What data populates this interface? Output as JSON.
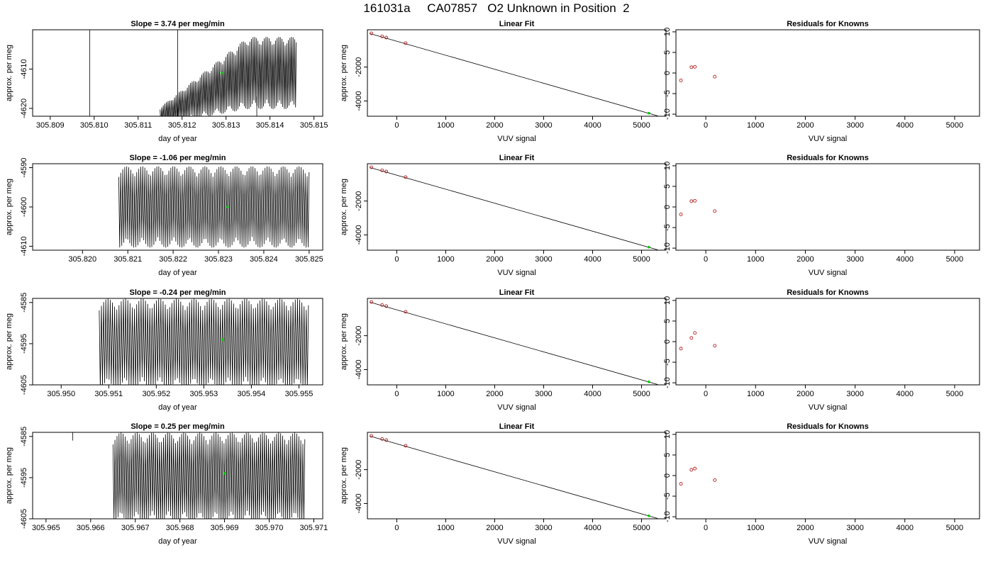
{
  "title": "161031a     CA07857   O2 Unknown in Position  2",
  "colors": {
    "series_line": "#000000",
    "known_points": "#b22222",
    "unknown_point": "#00cc00"
  },
  "chart_data": [
    {
      "type": "line",
      "title": "Slope =  3.74  per meg/min",
      "xlabel": "day of year",
      "ylabel": "approx. per meg",
      "xlim": [
        305.8086,
        305.8152
      ],
      "ylim": [
        -4622,
        -4600
      ],
      "xticks": [
        "305.809",
        "305.810",
        "305.811",
        "305.812",
        "305.813",
        "305.814",
        "305.815"
      ],
      "yticks": [
        "-4610",
        "-4620"
      ],
      "signal": {
        "start": 305.8115,
        "end": 305.8146,
        "ramp_start": 305.8115,
        "ramp_end": 305.8135,
        "center_min": -4622,
        "center_max": -4611,
        "amp_min": 2,
        "amp_max": 8,
        "cycles": 85
      },
      "extra_lines": [
        {
          "x": 305.8099,
          "y0": -4630,
          "y1": -4595
        },
        {
          "x": 305.8119,
          "y0": -4622,
          "y1": -4600
        },
        {
          "x": 305.8137,
          "y0": -4622,
          "y1": -4617
        }
      ],
      "marker": [
        305.8129,
        -4611
      ]
    },
    {
      "type": "scatter",
      "title": "Linear Fit",
      "xlabel": "VUV signal",
      "ylabel": "approx. per meg",
      "xlim": [
        -600,
        5500
      ],
      "ylim": [
        -4900,
        200
      ],
      "xticks": [
        "0",
        "1000",
        "2000",
        "3000",
        "4000",
        "5000"
      ],
      "yticks": [
        "-2000",
        "-4000"
      ],
      "fit_line": [
        [
          -540,
          -30
        ],
        [
          5330,
          -4880
        ]
      ],
      "knowns": [
        [
          -520,
          -10
        ],
        [
          -300,
          -190
        ],
        [
          -215,
          -260
        ],
        [
          180,
          -590
        ]
      ],
      "unknown": [
        5150,
        -4720
      ]
    },
    {
      "type": "scatter",
      "title": "Residuals for Knowns",
      "xlabel": "VUV signal",
      "ylabel": "",
      "xlim": [
        -600,
        5500
      ],
      "ylim": [
        -10.5,
        10.5
      ],
      "xticks": [
        "0",
        "1000",
        "2000",
        "3000",
        "4000",
        "5000"
      ],
      "yticks": [
        "10",
        "5",
        "0",
        "-5",
        "-10"
      ],
      "points": [
        [
          -500,
          -1.8
        ],
        [
          -290,
          1.4
        ],
        [
          -220,
          1.5
        ],
        [
          180,
          -0.9
        ]
      ]
    },
    {
      "type": "line",
      "title": "Slope =  -1.06  per meg/min",
      "xlabel": "day of year",
      "ylabel": "approx. per meg",
      "xlim": [
        305.8189,
        305.8253
      ],
      "ylim": [
        -4611,
        -4589
      ],
      "xticks": [
        "305.820",
        "305.821",
        "305.822",
        "305.823",
        "305.824",
        "305.825"
      ],
      "yticks": [
        "-4590",
        "-4600",
        "-4610"
      ],
      "signal": {
        "start": 305.8208,
        "end": 305.825,
        "ramp_start": 305.8208,
        "ramp_end": 305.8208,
        "center_min": -4600,
        "center_max": -4600,
        "amp_min": 9,
        "amp_max": 9,
        "cycles": 95
      },
      "extra_lines": [],
      "marker": [
        305.8232,
        -4600
      ]
    },
    {
      "type": "scatter",
      "title": "Linear Fit",
      "xlabel": "VUV signal",
      "ylabel": "approx. per meg",
      "xlim": [
        -600,
        5500
      ],
      "ylim": [
        -4900,
        200
      ],
      "xticks": [
        "0",
        "1000",
        "2000",
        "3000",
        "4000",
        "5000"
      ],
      "yticks": [
        "-2000",
        "-4000"
      ],
      "fit_line": [
        [
          -540,
          -30
        ],
        [
          5330,
          -4880
        ]
      ],
      "knowns": [
        [
          -520,
          -10
        ],
        [
          -300,
          -190
        ],
        [
          -215,
          -260
        ],
        [
          180,
          -590
        ]
      ],
      "unknown": [
        5150,
        -4720
      ]
    },
    {
      "type": "scatter",
      "title": "Residuals for Knowns",
      "xlabel": "VUV signal",
      "ylabel": "",
      "xlim": [
        -600,
        5500
      ],
      "ylim": [
        -10.5,
        10.5
      ],
      "xticks": [
        "0",
        "1000",
        "2000",
        "3000",
        "4000",
        "5000"
      ],
      "yticks": [
        "10",
        "5",
        "0",
        "-5",
        "-10"
      ],
      "points": [
        [
          -500,
          -1.8
        ],
        [
          -290,
          1.4
        ],
        [
          -220,
          1.5
        ],
        [
          180,
          -1.0
        ]
      ]
    },
    {
      "type": "line",
      "title": "Slope =  -0.24  per meg/min",
      "xlabel": "day of year",
      "ylabel": "approx. per meg",
      "xlim": [
        305.9494,
        305.9555
      ],
      "ylim": [
        -4605,
        -4584
      ],
      "xticks": [
        "305.950",
        "305.951",
        "305.952",
        "305.953",
        "305.954",
        "305.955"
      ],
      "yticks": [
        "-4585",
        "-4595",
        "-4605"
      ],
      "signal": {
        "start": 305.9508,
        "end": 305.9552,
        "ramp_start": 305.9508,
        "ramp_end": 305.9508,
        "center_min": -4595,
        "center_max": -4595,
        "amp_min": 9.5,
        "amp_max": 9.5,
        "cycles": 95
      },
      "extra_lines": [],
      "marker": [
        305.9534,
        -4594
      ]
    },
    {
      "type": "scatter",
      "title": "Linear Fit",
      "xlabel": "VUV signal",
      "ylabel": "approx. per meg",
      "xlim": [
        -600,
        5500
      ],
      "ylim": [
        -4900,
        200
      ],
      "xticks": [
        "0",
        "1000",
        "2000",
        "3000",
        "4000",
        "5000"
      ],
      "yticks": [
        "-2000",
        "-4000"
      ],
      "fit_line": [
        [
          -540,
          -30
        ],
        [
          5330,
          -4880
        ]
      ],
      "knowns": [
        [
          -520,
          -10
        ],
        [
          -300,
          -190
        ],
        [
          -215,
          -260
        ],
        [
          180,
          -590
        ]
      ],
      "unknown": [
        5150,
        -4720
      ]
    },
    {
      "type": "scatter",
      "title": "Residuals for Knowns",
      "xlabel": "VUV signal",
      "ylabel": "",
      "xlim": [
        -600,
        5500
      ],
      "ylim": [
        -10.5,
        10.5
      ],
      "xticks": [
        "0",
        "1000",
        "2000",
        "3000",
        "4000",
        "5000"
      ],
      "yticks": [
        "10",
        "5",
        "0",
        "-5",
        "-10"
      ],
      "points": [
        [
          -500,
          -1.7
        ],
        [
          -290,
          0.9
        ],
        [
          -220,
          2.1
        ],
        [
          180,
          -1.0
        ]
      ]
    },
    {
      "type": "line",
      "title": "Slope =  0.25  per meg/min",
      "xlabel": "day of year",
      "ylabel": "approx. per meg",
      "xlim": [
        305.9647,
        305.9712
      ],
      "ylim": [
        -4605,
        -4584
      ],
      "xticks": [
        "305.965",
        "305.966",
        "305.967",
        "305.968",
        "305.969",
        "305.970",
        "305.971"
      ],
      "yticks": [
        "-4585",
        "-4595",
        "-4605"
      ],
      "signal": {
        "start": 305.9665,
        "end": 305.9708,
        "ramp_start": 305.9665,
        "ramp_end": 305.9665,
        "center_min": -4595,
        "center_max": -4595,
        "amp_min": 9.5,
        "amp_max": 9.5,
        "cycles": 95
      },
      "extra_lines": [
        {
          "x": 305.9656,
          "y0": -4586,
          "y1": -4584
        }
      ],
      "marker": [
        305.969,
        -4594
      ]
    },
    {
      "type": "scatter",
      "title": "Linear Fit",
      "xlabel": "VUV signal",
      "ylabel": "approx. per meg",
      "xlim": [
        -600,
        5500
      ],
      "ylim": [
        -4900,
        200
      ],
      "xticks": [
        "0",
        "1000",
        "2000",
        "3000",
        "4000",
        "5000"
      ],
      "yticks": [
        "-2000",
        "-4000"
      ],
      "fit_line": [
        [
          -540,
          -30
        ],
        [
          5330,
          -4880
        ]
      ],
      "knowns": [
        [
          -520,
          -10
        ],
        [
          -300,
          -190
        ],
        [
          -215,
          -260
        ],
        [
          180,
          -590
        ]
      ],
      "unknown": [
        5150,
        -4720
      ]
    },
    {
      "type": "scatter",
      "title": "Residuals for Knowns",
      "xlabel": "VUV signal",
      "ylabel": "",
      "xlim": [
        -600,
        5500
      ],
      "ylim": [
        -10.5,
        10.5
      ],
      "xticks": [
        "0",
        "1000",
        "2000",
        "3000",
        "4000",
        "5000"
      ],
      "yticks": [
        "10",
        "5",
        "0",
        "-5",
        "-10"
      ],
      "points": [
        [
          -500,
          -2.0
        ],
        [
          -290,
          1.4
        ],
        [
          -220,
          1.7
        ],
        [
          180,
          -1.1
        ]
      ]
    }
  ]
}
